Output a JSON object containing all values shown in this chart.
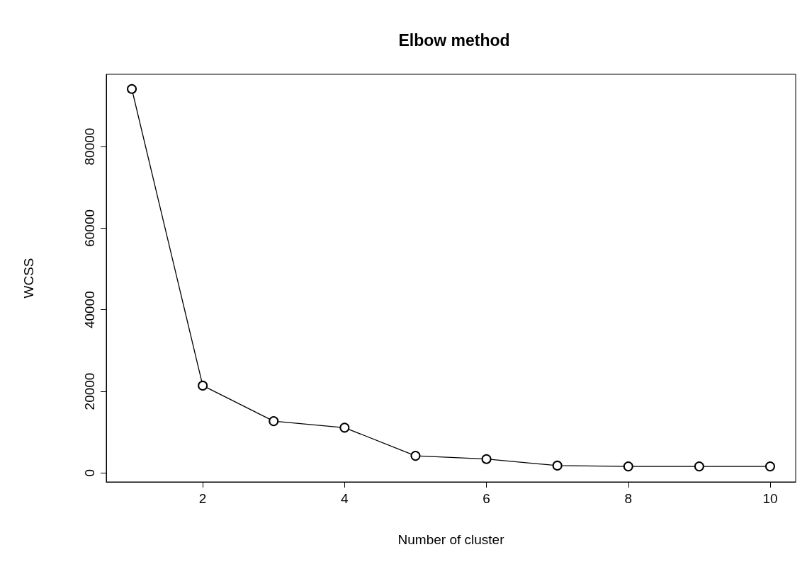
{
  "chart_data": {
    "type": "line",
    "title": "Elbow method",
    "xlabel": "Number of cluster",
    "ylabel": "WCSS",
    "x": [
      1,
      2,
      3,
      4,
      5,
      6,
      7,
      8,
      9,
      10
    ],
    "series": [
      {
        "color": "#000000",
        "values": [
          94100,
          21400,
          12700,
          11100,
          4200,
          3400,
          1800,
          1600,
          1600,
          1600
        ]
      }
    ],
    "xlim": [
      0.64,
      10.36
    ],
    "xticks": [
      2,
      4,
      6,
      8,
      10
    ],
    "ylim": [
      -2200,
      97700
    ],
    "yticks": [
      0,
      20000,
      40000,
      60000,
      80000
    ],
    "marker": "circle",
    "grid": false
  }
}
